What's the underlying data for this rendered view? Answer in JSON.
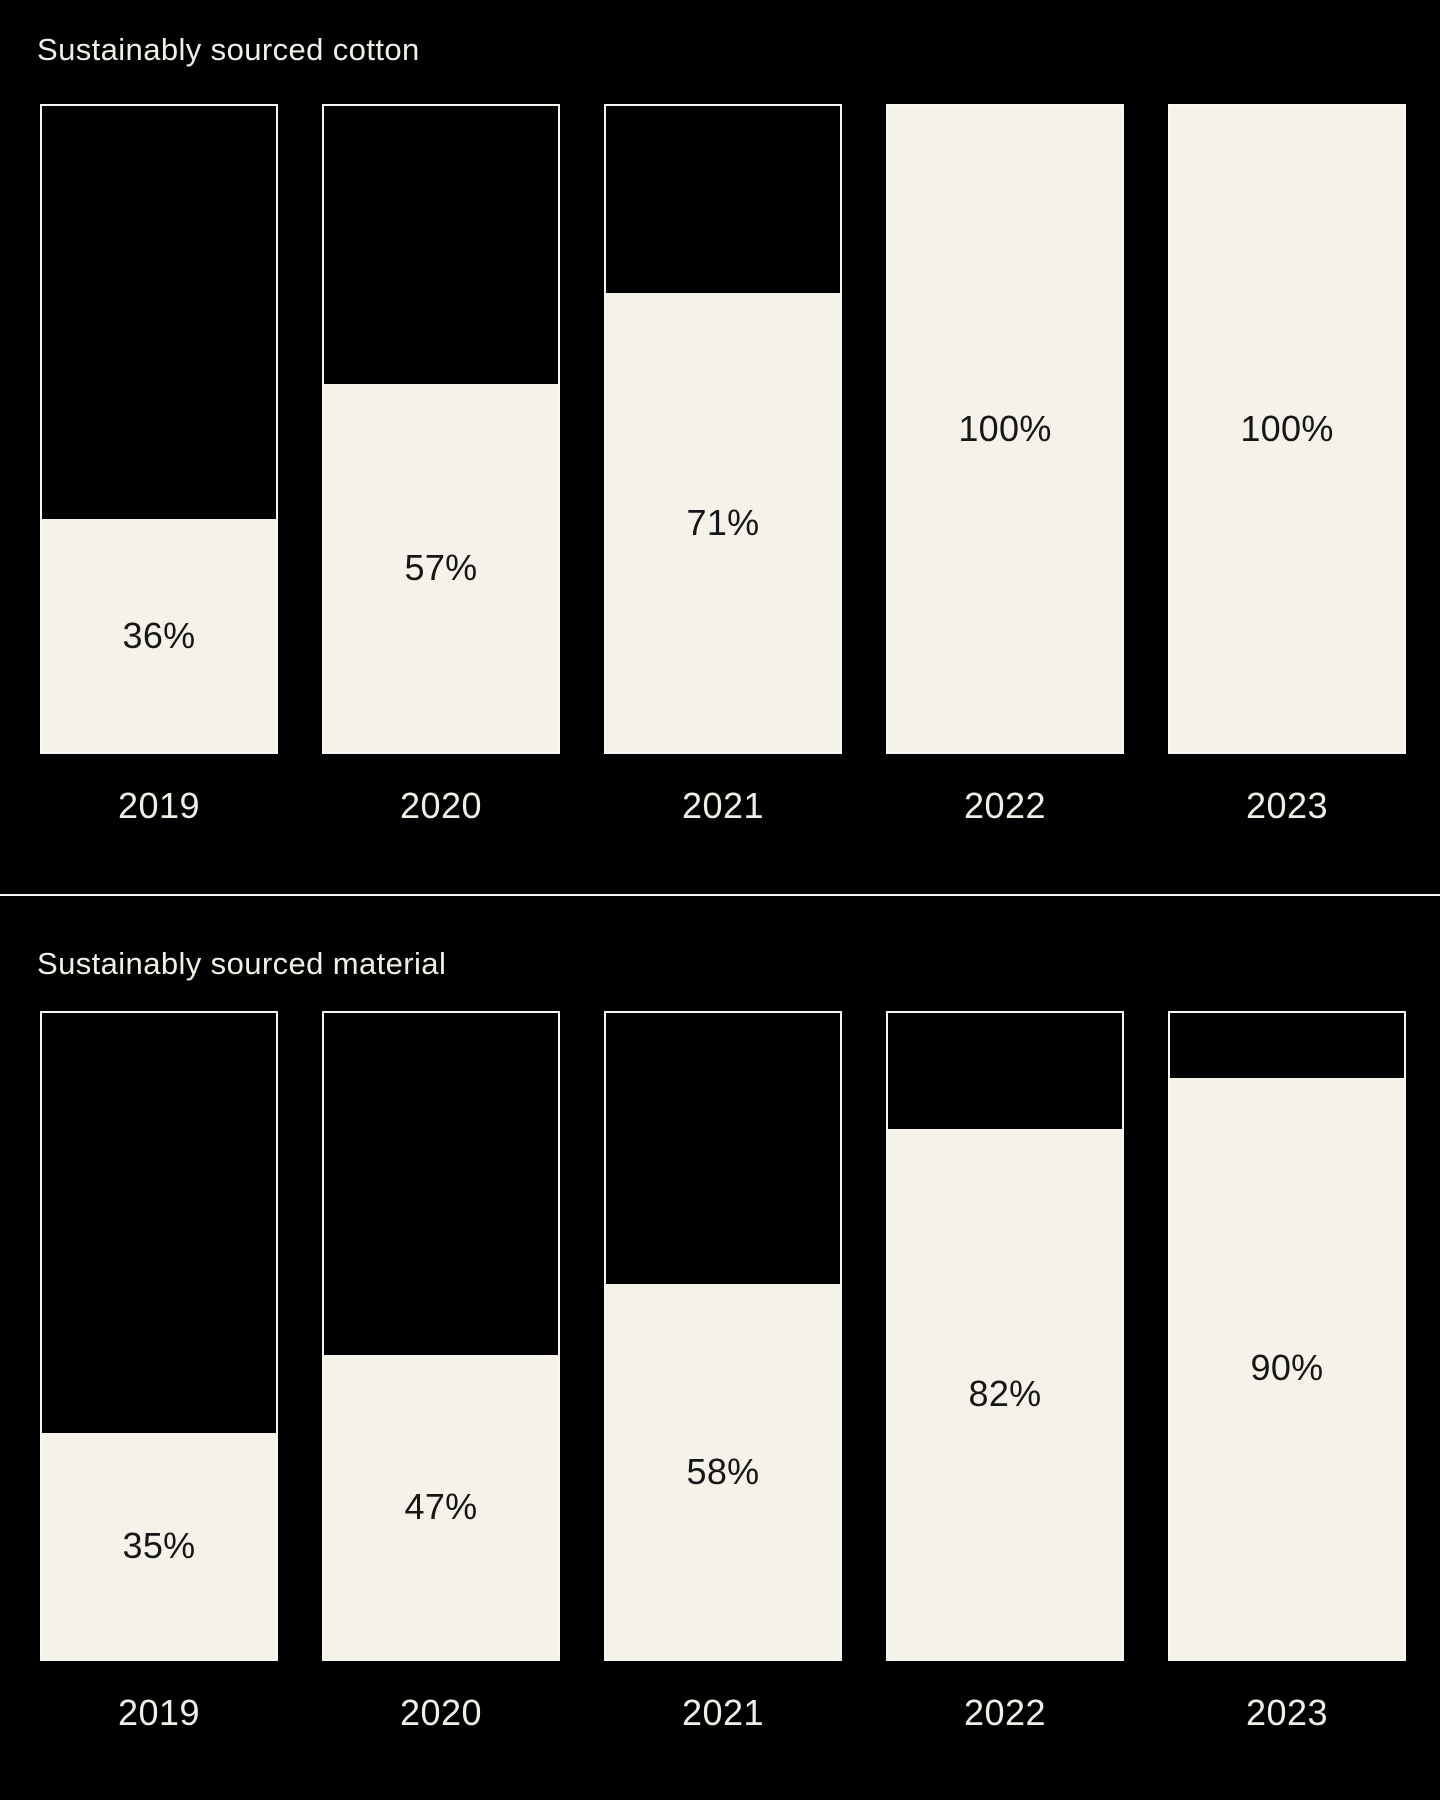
{
  "colors": {
    "background": "#000000",
    "bar_fill": "#F5F2E9",
    "bar_outline": "#F8F6EF",
    "text_light": "#F2EFE7",
    "text_dark": "#161616",
    "divider": "#F8F6EF"
  },
  "chart_data": [
    {
      "type": "bar",
      "title": "Sustainably sourced cotton",
      "categories": [
        "2019",
        "2020",
        "2021",
        "2022",
        "2023"
      ],
      "values": [
        36,
        57,
        71,
        100,
        100
      ],
      "value_labels": [
        "36%",
        "57%",
        "71%",
        "100%",
        "100%"
      ],
      "unit": "%",
      "ylim": [
        0,
        100
      ],
      "grid": false,
      "legend": "none",
      "bar_style": "outlined-box-bottom-fill",
      "value_label_position": "centered-in-fill"
    },
    {
      "type": "bar",
      "title": "Sustainably sourced material",
      "categories": [
        "2019",
        "2020",
        "2021",
        "2022",
        "2023"
      ],
      "values": [
        35,
        47,
        58,
        82,
        90
      ],
      "value_labels": [
        "35%",
        "47%",
        "58%",
        "82%",
        "90%"
      ],
      "unit": "%",
      "ylim": [
        0,
        100
      ],
      "grid": false,
      "legend": "none",
      "bar_style": "outlined-box-bottom-fill",
      "value_label_position": "centered-in-fill"
    }
  ]
}
